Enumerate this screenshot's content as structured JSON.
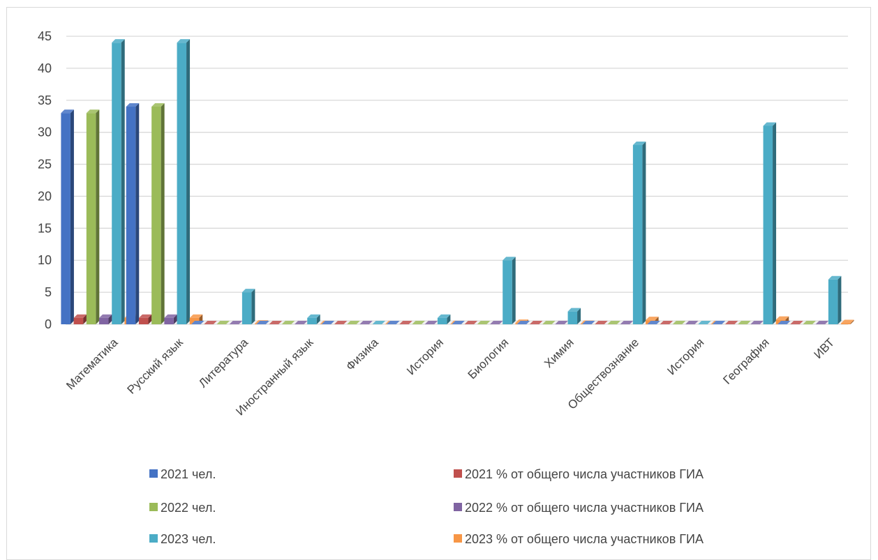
{
  "chart_data": {
    "type": "bar",
    "title": "",
    "xlabel": "",
    "ylabel": "",
    "ylim": [
      0,
      45
    ],
    "yticks": [
      0,
      5,
      10,
      15,
      20,
      25,
      30,
      35,
      40,
      45
    ],
    "grid": true,
    "legend_position": "bottom",
    "categories": [
      "Математика",
      "Русский язык",
      "Литература",
      "Иностранный язык",
      "Физика",
      "История",
      "Биология",
      "Химия",
      "Обществознание",
      "История",
      "География",
      "ИВТ"
    ],
    "series": [
      {
        "name": "2021 чел.",
        "color": "#4472C4",
        "values": [
          33,
          34,
          0,
          0,
          0,
          0,
          0,
          0,
          0,
          0,
          0,
          0
        ]
      },
      {
        "name": "2021 % от общего числа участников ГИА",
        "color": "#C0504D",
        "values": [
          1,
          1,
          0,
          0,
          0,
          0,
          0,
          0,
          0,
          0,
          0,
          0
        ]
      },
      {
        "name": "2022 чел.",
        "color": "#9BBB59",
        "values": [
          33,
          34,
          0,
          0,
          0,
          0,
          0,
          0,
          0,
          0,
          0,
          0
        ]
      },
      {
        "name": "2022 % от общего числа участников ГИА",
        "color": "#8064A2",
        "values": [
          1,
          1,
          0,
          0,
          0,
          0,
          0,
          0,
          0,
          0,
          0,
          0
        ]
      },
      {
        "name": "2023 чел.",
        "color": "#4BACC6",
        "values": [
          44,
          44,
          5,
          1,
          0,
          1,
          10,
          2,
          28,
          0,
          31,
          7
        ]
      },
      {
        "name": "2023 % от общего числа участников ГИА",
        "color": "#F79646",
        "values": [
          1,
          1,
          0.1,
          0.02,
          0,
          0.02,
          0.2,
          0.05,
          0.64,
          0,
          0.7,
          0.16
        ]
      }
    ]
  }
}
